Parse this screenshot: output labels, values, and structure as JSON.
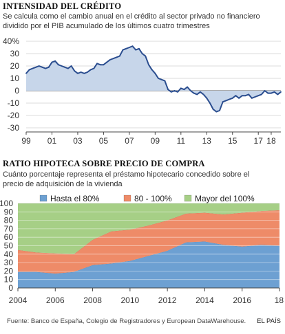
{
  "chart_data": [
    {
      "type": "area",
      "title": "INTENSIDAD DEL CRÉDITO",
      "subtitle": [
        "Se calcula como el cambio anual en el crédito al sector privado no financiero",
        "dividido por el PIB acumulado de los últimos cuatro trimestres"
      ],
      "ylim": [
        -30,
        40
      ],
      "yticks": [
        "40%",
        "30",
        "20",
        "10",
        "0",
        "-10",
        "-20",
        "-30"
      ],
      "ytick_values": [
        40,
        30,
        20,
        10,
        0,
        -10,
        -20,
        -30
      ],
      "xticks": [
        "99",
        "01",
        "03",
        "05",
        "07",
        "09",
        "11",
        "13",
        "15",
        "17",
        "18"
      ],
      "xtick_values": [
        1999,
        2001,
        2003,
        2005,
        2007,
        2009,
        2011,
        2013,
        2015,
        2017,
        2018
      ],
      "xlim": [
        1999,
        2018.75
      ],
      "colors": {
        "line": "#2a4d8f",
        "fill": "#c7d6ea"
      },
      "x": [
        1999,
        1999.25,
        1999.5,
        1999.75,
        2000,
        2000.25,
        2000.5,
        2000.75,
        2001,
        2001.25,
        2001.5,
        2001.75,
        2002,
        2002.25,
        2002.5,
        2002.75,
        2003,
        2003.25,
        2003.5,
        2003.75,
        2004,
        2004.25,
        2004.5,
        2004.75,
        2005,
        2005.25,
        2005.5,
        2005.75,
        2006,
        2006.25,
        2006.5,
        2006.75,
        2007,
        2007.25,
        2007.5,
        2007.75,
        2008,
        2008.25,
        2008.5,
        2008.75,
        2009,
        2009.25,
        2009.5,
        2009.75,
        2010,
        2010.25,
        2010.5,
        2010.75,
        2011,
        2011.25,
        2011.5,
        2011.75,
        2012,
        2012.25,
        2012.5,
        2012.75,
        2013,
        2013.25,
        2013.5,
        2013.75,
        2014,
        2014.25,
        2014.5,
        2014.75,
        2015,
        2015.25,
        2015.5,
        2015.75,
        2016,
        2016.25,
        2016.5,
        2016.75,
        2017,
        2017.25,
        2017.5,
        2017.75,
        2018,
        2018.25,
        2018.5,
        2018.75
      ],
      "values": [
        14,
        17,
        18,
        19,
        20,
        19,
        18,
        19,
        23,
        24,
        21,
        20,
        19,
        18,
        20,
        16,
        14,
        15,
        14,
        15,
        17,
        18,
        22,
        21,
        21,
        23,
        25,
        26,
        27,
        28,
        33,
        34,
        35,
        36,
        33,
        34,
        30,
        28,
        21,
        17,
        14,
        10,
        9,
        8,
        1,
        -1,
        0,
        -1,
        2,
        1,
        3,
        0,
        -2,
        -3,
        -1,
        -3,
        -6,
        -10,
        -15,
        -17,
        -16,
        -9,
        -8,
        -7,
        -6,
        -4,
        -6,
        -4,
        -4,
        -3,
        -6,
        -5,
        -4,
        -3,
        0,
        -2,
        -2,
        -1,
        -3,
        -1
      ]
    },
    {
      "type": "area",
      "title": "RATIO HIPOTECA SOBRE PRECIO DE COMPRA",
      "subtitle": [
        "Cuánto porcentaje representa el préstamo hipotecario concedido sobre el",
        "precio de adquisición de la vivienda"
      ],
      "ylim": [
        0,
        100
      ],
      "yticks": [
        "100",
        "90",
        "80",
        "70",
        "60",
        "50",
        "40",
        "30",
        "20",
        "10",
        "0"
      ],
      "ytick_values": [
        100,
        90,
        80,
        70,
        60,
        50,
        40,
        30,
        20,
        10,
        0
      ],
      "xticks": [
        "2004",
        "2006",
        "2008",
        "2010",
        "2012",
        "2014",
        "2016",
        "18"
      ],
      "xtick_values": [
        2004,
        2006,
        2008,
        2010,
        2012,
        2014,
        2016,
        2018
      ],
      "xlim": [
        2004,
        2018
      ],
      "x": [
        2004,
        2005,
        2006,
        2007,
        2008,
        2009,
        2010,
        2011,
        2012,
        2013,
        2014,
        2015,
        2016,
        2017,
        2018
      ],
      "series": [
        {
          "name": "Hasta el 80%",
          "color": "#6da0d2",
          "values": [
            19,
            19,
            17,
            19,
            27,
            29,
            32,
            38,
            44,
            54,
            55,
            51,
            49,
            51,
            50
          ]
        },
        {
          "name": "80 - 100%",
          "color": "#ee8b68",
          "values": [
            26,
            23,
            24,
            21,
            30,
            38,
            37,
            36,
            36,
            34,
            34,
            36,
            40,
            40,
            42
          ]
        },
        {
          "name": "Mayor del 100%",
          "color": "#a6cf86",
          "values": [
            55,
            58,
            59,
            60,
            43,
            33,
            31,
            26,
            20,
            12,
            11,
            13,
            11,
            9,
            8
          ]
        }
      ]
    }
  ],
  "footer": "Fuente: Banco de España, Colegio de Registradores y European DataWarehouse.",
  "brand": "EL PAÍS"
}
